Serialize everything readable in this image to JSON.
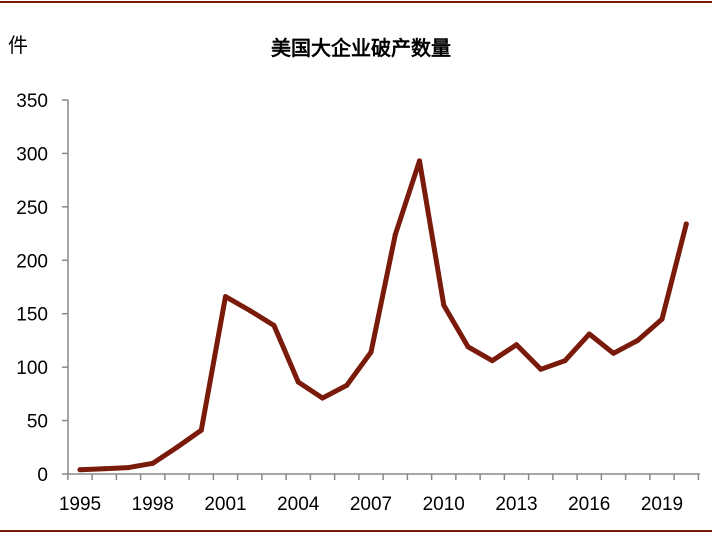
{
  "colors": {
    "series": "#7a1a0a",
    "frame": "#7a1a0a",
    "axis": "#888888",
    "text": "#000000"
  },
  "chart_data": {
    "type": "line",
    "title": "美国大企业破产数量",
    "ylabel": "件",
    "xlabel": "",
    "ylim": [
      0,
      350
    ],
    "yticks": [
      0,
      50,
      100,
      150,
      200,
      250,
      300,
      350
    ],
    "xticks": [
      "1995",
      "1998",
      "2001",
      "2004",
      "2007",
      "2010",
      "2013",
      "2016",
      "2019"
    ],
    "grid": false,
    "legend": "none",
    "series": [
      {
        "x": [
          1995,
          1996,
          1997,
          1998,
          1999,
          2000,
          2001,
          2002,
          2003,
          2004,
          2005,
          2006,
          2007,
          2008,
          2009,
          2010,
          2011,
          2012,
          2013,
          2014,
          2015,
          2016,
          2017,
          2018,
          2019,
          2020
        ],
        "values": [
          4,
          5,
          6,
          10,
          25,
          41,
          166,
          153,
          139,
          86,
          71,
          83,
          114,
          224,
          293,
          158,
          119,
          106,
          121,
          98,
          106,
          131,
          113,
          125,
          145,
          234
        ]
      }
    ]
  }
}
